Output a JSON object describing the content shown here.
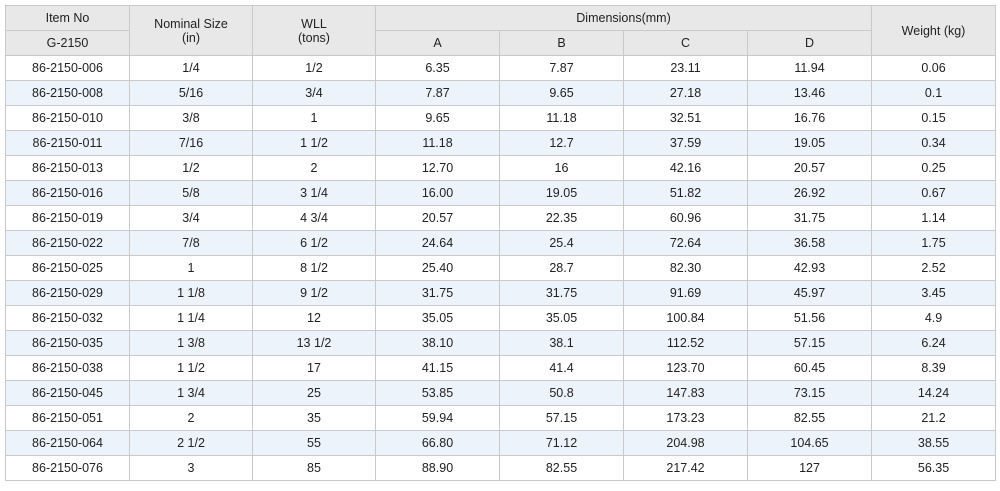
{
  "header": {
    "item_no": "Item No",
    "item_code": "G-2150",
    "nominal_size_line1": "Nominal Size",
    "nominal_size_line2": "(in)",
    "wll_line1": "WLL",
    "wll_line2": "(tons)",
    "dimensions": "Dimensions(mm)",
    "dim_a": "A",
    "dim_b": "B",
    "dim_c": "C",
    "dim_d": "D",
    "weight": "Weight (kg)"
  },
  "rows": [
    [
      "86-2150-006",
      "1/4",
      "1/2",
      "6.35",
      "7.87",
      "23.11",
      "11.94",
      "0.06"
    ],
    [
      "86-2150-008",
      "5/16",
      "3/4",
      "7.87",
      "9.65",
      "27.18",
      "13.46",
      "0.1"
    ],
    [
      "86-2150-010",
      "3/8",
      "1",
      "9.65",
      "11.18",
      "32.51",
      "16.76",
      "0.15"
    ],
    [
      "86-2150-011",
      "7/16",
      "1 1/2",
      "11.18",
      "12.7",
      "37.59",
      "19.05",
      "0.34"
    ],
    [
      "86-2150-013",
      "1/2",
      "2",
      "12.70",
      "16",
      "42.16",
      "20.57",
      "0.25"
    ],
    [
      "86-2150-016",
      "5/8",
      "3 1/4",
      "16.00",
      "19.05",
      "51.82",
      "26.92",
      "0.67"
    ],
    [
      "86-2150-019",
      "3/4",
      "4 3/4",
      "20.57",
      "22.35",
      "60.96",
      "31.75",
      "1.14"
    ],
    [
      "86-2150-022",
      "7/8",
      "6 1/2",
      "24.64",
      "25.4",
      "72.64",
      "36.58",
      "1.75"
    ],
    [
      "86-2150-025",
      "1",
      "8 1/2",
      "25.40",
      "28.7",
      "82.30",
      "42.93",
      "2.52"
    ],
    [
      "86-2150-029",
      "1 1/8",
      "9 1/2",
      "31.75",
      "31.75",
      "91.69",
      "45.97",
      "3.45"
    ],
    [
      "86-2150-032",
      "1 1/4",
      "12",
      "35.05",
      "35.05",
      "100.84",
      "51.56",
      "4.9"
    ],
    [
      "86-2150-035",
      "1 3/8",
      "13 1/2",
      "38.10",
      "38.1",
      "112.52",
      "57.15",
      "6.24"
    ],
    [
      "86-2150-038",
      "1 1/2",
      "17",
      "41.15",
      "41.4",
      "123.70",
      "60.45",
      "8.39"
    ],
    [
      "86-2150-045",
      "1 3/4",
      "25",
      "53.85",
      "50.8",
      "147.83",
      "73.15",
      "14.24"
    ],
    [
      "86-2150-051",
      "2",
      "35",
      "59.94",
      "57.15",
      "173.23",
      "82.55",
      "21.2"
    ],
    [
      "86-2150-064",
      "2 1/2",
      "55",
      "66.80",
      "71.12",
      "204.98",
      "104.65",
      "38.55"
    ],
    [
      "86-2150-076",
      "3",
      "85",
      "88.90",
      "82.55",
      "217.42",
      "127",
      "56.35"
    ]
  ]
}
